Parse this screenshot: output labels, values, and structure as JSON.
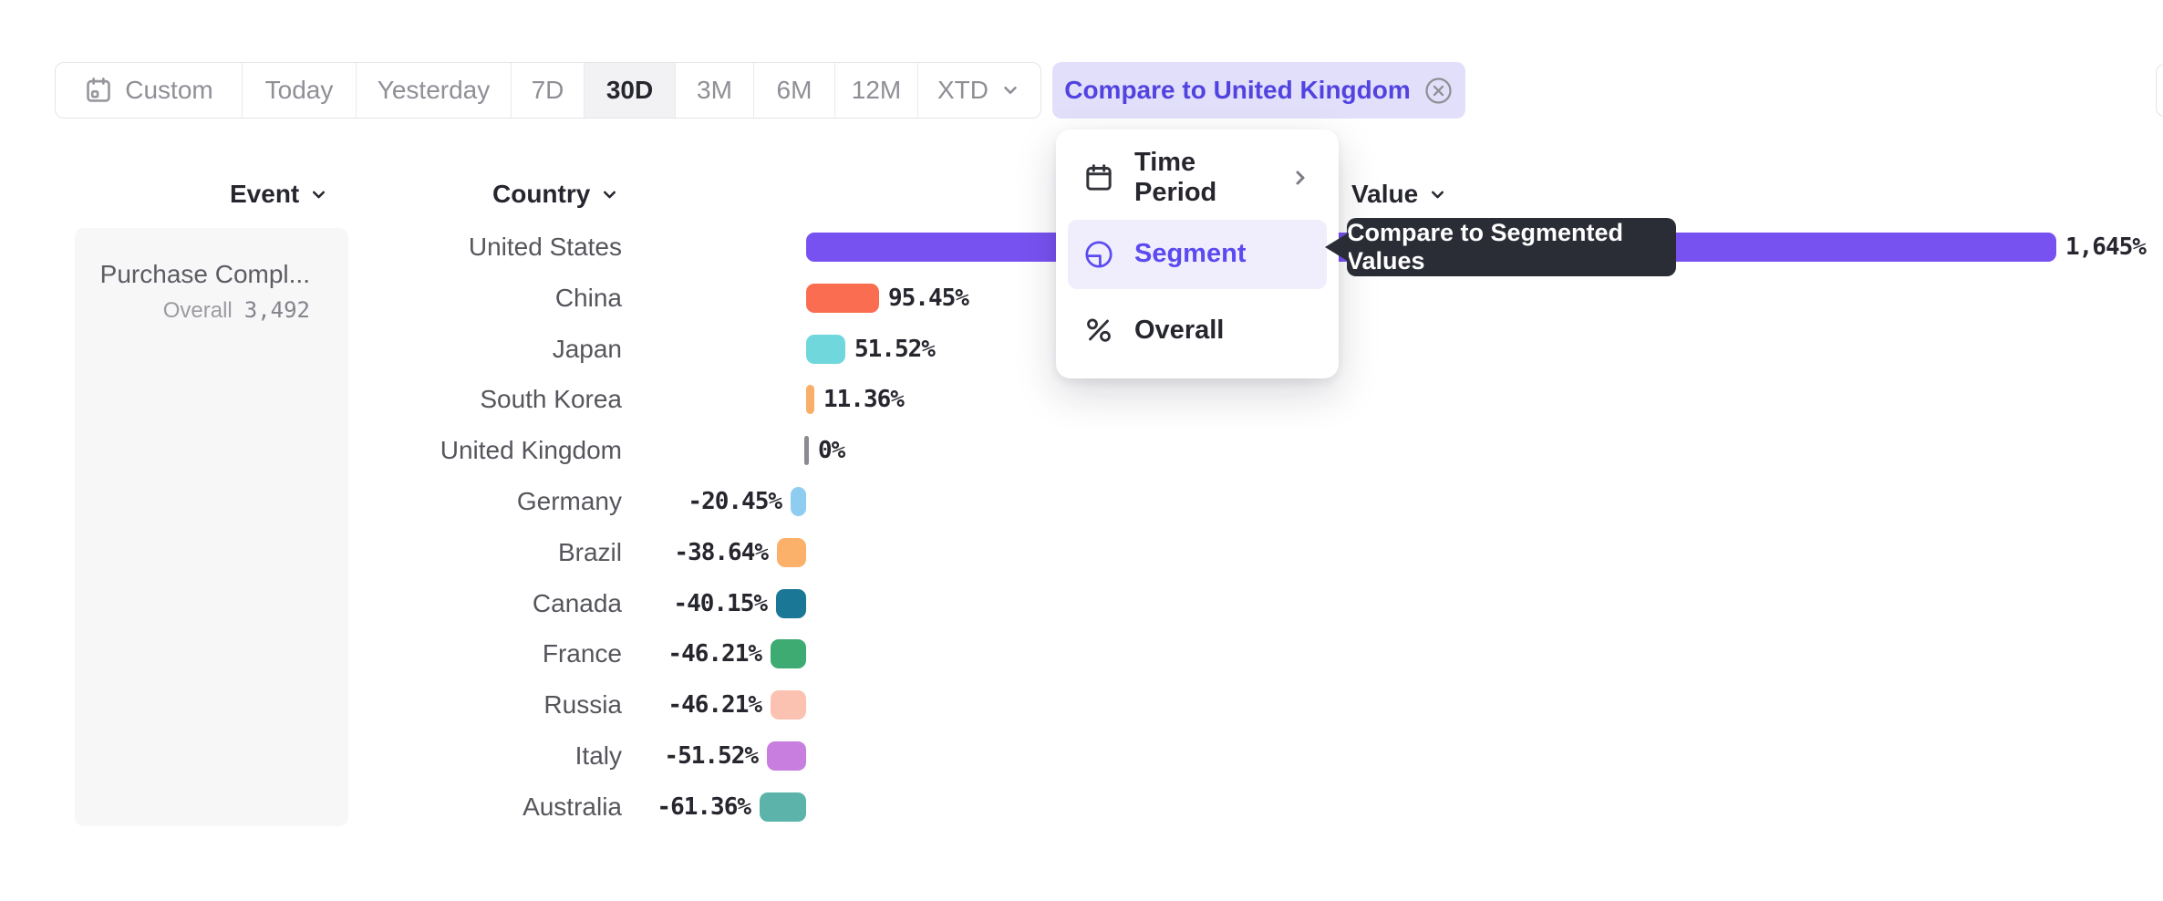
{
  "toolbar": {
    "items": [
      {
        "label": "Custom",
        "icon": "calendar-icon"
      },
      {
        "label": "Today"
      },
      {
        "label": "Yesterday"
      },
      {
        "label": "7D"
      },
      {
        "label": "30D",
        "selected": true
      },
      {
        "label": "3M"
      },
      {
        "label": "6M"
      },
      {
        "label": "12M"
      },
      {
        "label": "XTD",
        "has_dropdown": true
      }
    ],
    "compare_chip": {
      "label": "Compare to United Kingdom",
      "icon": "close-circle-icon"
    }
  },
  "headers": {
    "event": "Event",
    "country": "Country",
    "value": "Value"
  },
  "event_panel": {
    "event_name": "Purchase Compl...",
    "overall_label": "Overall",
    "overall_value": "3,492"
  },
  "menu": {
    "items": [
      {
        "label": "Time Period",
        "icon": "calendar-icon",
        "has_submenu": true
      },
      {
        "label": "Segment",
        "icon": "segment-icon",
        "highlighted": true
      },
      {
        "label": "Overall",
        "icon": "percent-icon"
      }
    ]
  },
  "tooltip": {
    "text": "Compare to Segmented Values"
  },
  "chart_data": {
    "type": "bar",
    "orientation": "horizontal",
    "categories": [
      "United States",
      "China",
      "Japan",
      "South Korea",
      "United Kingdom",
      "Germany",
      "Brazil",
      "Canada",
      "France",
      "Russia",
      "Italy",
      "Australia"
    ],
    "values": [
      1645,
      95.45,
      51.52,
      11.36,
      0,
      -20.45,
      -38.64,
      -40.15,
      -46.21,
      -46.21,
      -51.52,
      -61.36
    ],
    "value_labels": [
      "1,645%",
      "95.45%",
      "51.52%",
      "11.36%",
      "0%",
      "-20.45%",
      "-38.64%",
      "-40.15%",
      "-46.21%",
      "-46.21%",
      "-51.52%",
      "-61.36%"
    ],
    "colors": [
      "#7852F0",
      "#FA6D51",
      "#70D7DC",
      "#F9AF67",
      "#8A8A90",
      "#8FCDF0",
      "#FBB169",
      "#1A7795",
      "#3EAC72",
      "#FBC2B2",
      "#C77EDF",
      "#5BB3A9"
    ],
    "patterned": [
      false,
      false,
      false,
      false,
      false,
      true,
      true,
      false,
      false,
      false,
      false,
      false
    ],
    "unit": "%",
    "baseline": 0,
    "grid": false,
    "legend": false
  },
  "colors": {
    "accent": "#5143E0",
    "chip_bg": "#E2DFFA",
    "menu_highlight_bg": "#F0EDFD",
    "tooltip_bg": "#2B2D36",
    "selected_tab_bg": "#F2F2F4",
    "panel_bg": "#F7F7F8"
  }
}
